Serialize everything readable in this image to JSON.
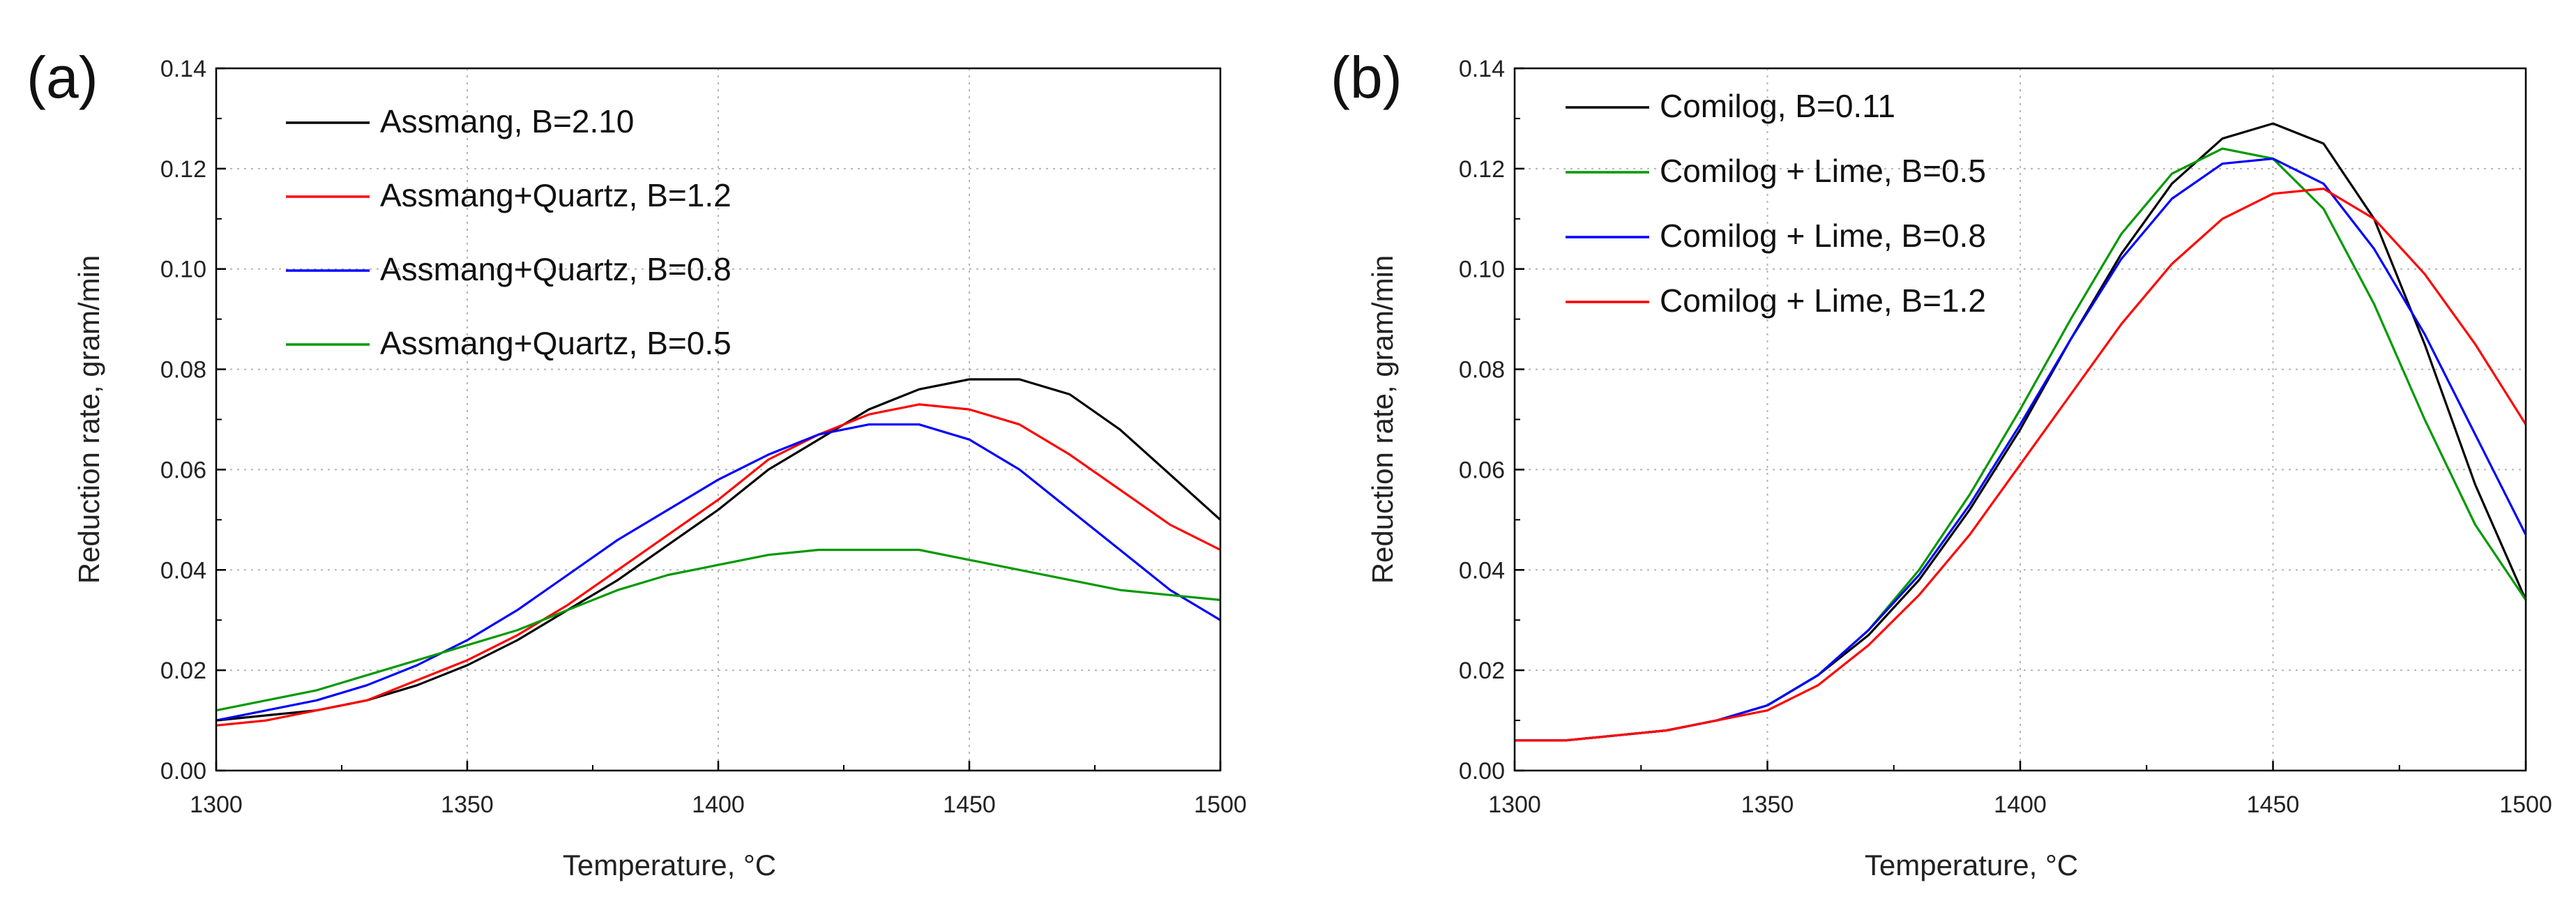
{
  "chart_data": [
    {
      "type": "line",
      "panel_label": "(a)",
      "xlabel": "Temperature, °C",
      "ylabel": "Reduction rate, gram/min",
      "xlim": [
        1300,
        1500
      ],
      "ylim": [
        0.0,
        0.14
      ],
      "x_ticks": [
        1300,
        1350,
        1400,
        1450,
        1500
      ],
      "x_tick_labels": [
        "1300",
        "1350",
        "1400",
        "1450",
        "1500"
      ],
      "y_ticks": [
        0.0,
        0.02,
        0.04,
        0.06,
        0.08,
        0.1,
        0.12,
        0.14
      ],
      "y_tick_labels": [
        "0.00",
        "0.02",
        "0.04",
        "0.06",
        "0.08",
        "0.10",
        "0.12",
        "0.14"
      ],
      "grid": true,
      "legend_position": "top-left",
      "series": [
        {
          "name": "Assmang, B=2.10",
          "color": "#000000",
          "x": [
            1300,
            1310,
            1320,
            1330,
            1340,
            1350,
            1360,
            1370,
            1380,
            1390,
            1400,
            1410,
            1420,
            1430,
            1440,
            1450,
            1460,
            1470,
            1480,
            1490,
            1500
          ],
          "y": [
            0.01,
            0.011,
            0.012,
            0.014,
            0.017,
            0.021,
            0.026,
            0.032,
            0.038,
            0.045,
            0.052,
            0.06,
            0.066,
            0.072,
            0.076,
            0.078,
            0.078,
            0.075,
            0.068,
            0.059,
            0.05
          ]
        },
        {
          "name": "Assmang+Quartz, B=1.2",
          "color": "#ff0000",
          "x": [
            1300,
            1310,
            1320,
            1330,
            1340,
            1350,
            1360,
            1370,
            1380,
            1390,
            1400,
            1410,
            1420,
            1430,
            1440,
            1450,
            1460,
            1470,
            1480,
            1490,
            1500
          ],
          "y": [
            0.009,
            0.01,
            0.012,
            0.014,
            0.018,
            0.022,
            0.027,
            0.033,
            0.04,
            0.047,
            0.054,
            0.062,
            0.067,
            0.071,
            0.073,
            0.072,
            0.069,
            0.063,
            0.056,
            0.049,
            0.044
          ]
        },
        {
          "name": "Assmang+Quartz, B=0.8",
          "color": "#0000ff",
          "x": [
            1300,
            1310,
            1320,
            1330,
            1340,
            1350,
            1360,
            1370,
            1380,
            1390,
            1400,
            1410,
            1420,
            1430,
            1440,
            1450,
            1460,
            1470,
            1480,
            1490,
            1500
          ],
          "y": [
            0.01,
            0.012,
            0.014,
            0.017,
            0.021,
            0.026,
            0.032,
            0.039,
            0.046,
            0.052,
            0.058,
            0.063,
            0.067,
            0.069,
            0.069,
            0.066,
            0.06,
            0.052,
            0.044,
            0.036,
            0.03
          ]
        },
        {
          "name": "Assmang+Quartz, B=0.5",
          "color": "#009900",
          "x": [
            1300,
            1310,
            1320,
            1330,
            1340,
            1350,
            1360,
            1370,
            1380,
            1390,
            1400,
            1410,
            1420,
            1430,
            1440,
            1450,
            1460,
            1470,
            1480,
            1490,
            1500
          ],
          "y": [
            0.012,
            0.014,
            0.016,
            0.019,
            0.022,
            0.025,
            0.028,
            0.032,
            0.036,
            0.039,
            0.041,
            0.043,
            0.044,
            0.044,
            0.044,
            0.042,
            0.04,
            0.038,
            0.036,
            0.035,
            0.034
          ]
        }
      ]
    },
    {
      "type": "line",
      "panel_label": "(b)",
      "xlabel": "Temperature, °C",
      "ylabel": "Reduction rate, gram/min",
      "xlim": [
        1300,
        1500
      ],
      "ylim": [
        0.0,
        0.14
      ],
      "x_ticks": [
        1300,
        1350,
        1400,
        1450,
        1500
      ],
      "x_tick_labels": [
        "1300",
        "1350",
        "1400",
        "1450",
        "1500"
      ],
      "y_ticks": [
        0.0,
        0.02,
        0.04,
        0.06,
        0.08,
        0.1,
        0.12,
        0.14
      ],
      "y_tick_labels": [
        "0.00",
        "0.02",
        "0.04",
        "0.06",
        "0.08",
        "0.10",
        "0.12",
        "0.14"
      ],
      "grid": true,
      "legend_position": "top-left",
      "series": [
        {
          "name": "Comilog, B=0.11",
          "color": "#000000",
          "x": [
            1300,
            1310,
            1320,
            1330,
            1340,
            1350,
            1360,
            1370,
            1380,
            1390,
            1400,
            1410,
            1420,
            1430,
            1440,
            1450,
            1460,
            1470,
            1480,
            1490,
            1500
          ],
          "y": [
            0.006,
            0.006,
            0.007,
            0.008,
            0.01,
            0.013,
            0.019,
            0.027,
            0.038,
            0.052,
            0.068,
            0.086,
            0.103,
            0.117,
            0.126,
            0.129,
            0.125,
            0.11,
            0.085,
            0.057,
            0.034
          ]
        },
        {
          "name": "Comilog + Lime, B=0.5",
          "color": "#009900",
          "x": [
            1300,
            1310,
            1320,
            1330,
            1340,
            1350,
            1360,
            1370,
            1380,
            1390,
            1400,
            1410,
            1420,
            1430,
            1440,
            1450,
            1460,
            1470,
            1480,
            1490,
            1500
          ],
          "y": [
            0.006,
            0.006,
            0.007,
            0.008,
            0.01,
            0.013,
            0.019,
            0.028,
            0.04,
            0.055,
            0.072,
            0.09,
            0.107,
            0.119,
            0.124,
            0.122,
            0.112,
            0.093,
            0.07,
            0.049,
            0.034
          ]
        },
        {
          "name": "Comilog + Lime, B=0.8",
          "color": "#0000ff",
          "x": [
            1300,
            1310,
            1320,
            1330,
            1340,
            1350,
            1360,
            1370,
            1380,
            1390,
            1400,
            1410,
            1420,
            1430,
            1440,
            1450,
            1460,
            1470,
            1480,
            1490,
            1500
          ],
          "y": [
            0.006,
            0.006,
            0.007,
            0.008,
            0.01,
            0.013,
            0.019,
            0.028,
            0.039,
            0.053,
            0.069,
            0.086,
            0.102,
            0.114,
            0.121,
            0.122,
            0.117,
            0.104,
            0.087,
            0.067,
            0.047
          ]
        },
        {
          "name": "Comilog + Lime, B=1.2",
          "color": "#ff0000",
          "x": [
            1300,
            1310,
            1320,
            1330,
            1340,
            1350,
            1360,
            1370,
            1380,
            1390,
            1400,
            1410,
            1420,
            1430,
            1440,
            1450,
            1460,
            1470,
            1480,
            1490,
            1500
          ],
          "y": [
            0.006,
            0.006,
            0.007,
            0.008,
            0.01,
            0.012,
            0.017,
            0.025,
            0.035,
            0.047,
            0.061,
            0.075,
            0.089,
            0.101,
            0.11,
            0.115,
            0.116,
            0.11,
            0.099,
            0.085,
            0.069
          ]
        }
      ]
    }
  ]
}
